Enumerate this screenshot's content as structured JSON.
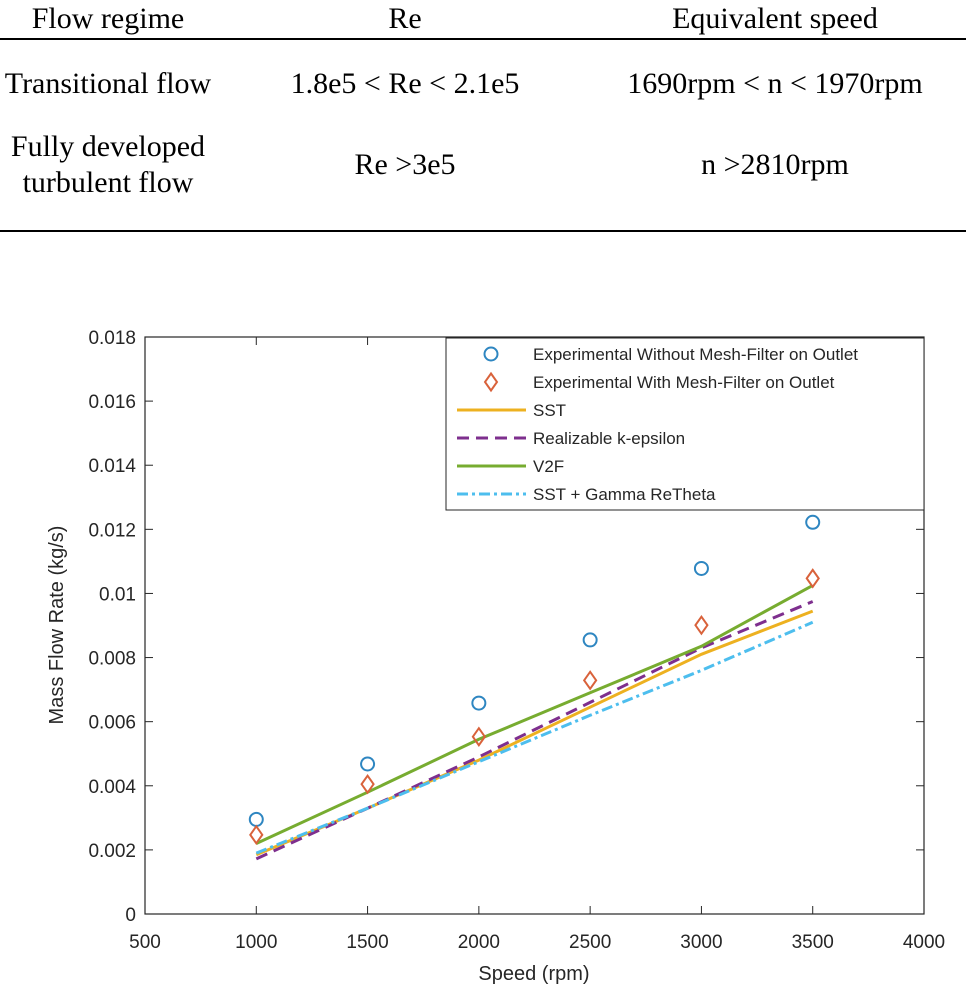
{
  "table": {
    "headers": [
      "Flow regime",
      "Re",
      "Equivalent speed"
    ],
    "rows": [
      [
        "Transitional flow",
        "1.8e5 < Re < 2.1e5",
        "1690rpm < n < 1970rpm"
      ],
      [
        [
          "Fully developed",
          "turbulent flow"
        ],
        "Re >3e5",
        "n >2810rpm"
      ]
    ]
  },
  "chart_data": {
    "type": "line",
    "title": "",
    "xlabel": "Speed (rpm)",
    "ylabel": "Mass Flow Rate (kg/s)",
    "xlim": [
      500,
      4000
    ],
    "ylim": [
      0,
      0.018
    ],
    "xticks": [
      500,
      1000,
      1500,
      2000,
      2500,
      3000,
      3500,
      4000
    ],
    "yticks": [
      0,
      0.002,
      0.004,
      0.006,
      0.008,
      0.01,
      0.012,
      0.014,
      0.016,
      0.018
    ],
    "ytick_labels": [
      "0",
      "0.002",
      "0.004",
      "0.006",
      "0.008",
      "0.01",
      "0.012",
      "0.014",
      "0.016",
      "0.018"
    ],
    "grid": false,
    "legend_position": "top-right",
    "x": [
      1000,
      1500,
      2000,
      2500,
      3000,
      3500
    ],
    "series": [
      {
        "name": "Experimental Without Mesh-Filter on Outlet",
        "style": "circle",
        "color": "#2E86C1",
        "values": [
          0.00295,
          0.00468,
          0.00658,
          0.00855,
          0.01078,
          0.01222
        ]
      },
      {
        "name": "Experimental With Mesh-Filter on Outlet",
        "style": "diamond",
        "color": "#D9623B",
        "values": [
          0.00247,
          0.00405,
          0.00553,
          0.00729,
          0.00901,
          0.01047
        ]
      },
      {
        "name": "SST",
        "style": "solid",
        "color": "#EDB120",
        "values": [
          0.00185,
          0.0033,
          0.0048,
          0.00645,
          0.0081,
          0.00945
        ]
      },
      {
        "name": "Realizable k-epsilon",
        "style": "dash",
        "color": "#7E2F8E",
        "values": [
          0.00172,
          0.0033,
          0.0049,
          0.0066,
          0.0083,
          0.00975
        ]
      },
      {
        "name": "V2F",
        "style": "solid",
        "color": "#77AC30",
        "values": [
          0.0022,
          0.0038,
          0.00545,
          0.0069,
          0.00835,
          0.01025
        ]
      },
      {
        "name": "SST + Gamma ReTheta",
        "style": "dashdot",
        "color": "#4DBEEE",
        "values": [
          0.0019,
          0.0033,
          0.00475,
          0.0062,
          0.0076,
          0.0091
        ]
      }
    ]
  }
}
